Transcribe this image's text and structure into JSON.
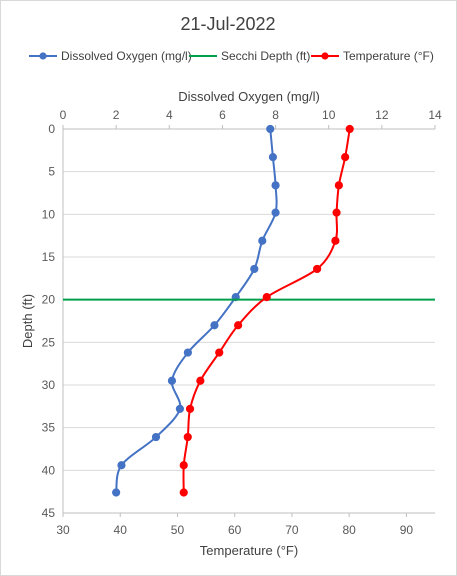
{
  "chart_data": {
    "type": "line",
    "title": "21-Jul-2022",
    "y_axis": {
      "label": "Depth (ft)",
      "range": [
        0,
        45
      ],
      "inverted": true,
      "ticks": [
        "0",
        "5",
        "10",
        "15",
        "20",
        "25",
        "30",
        "35",
        "40",
        "45"
      ]
    },
    "x_axis_top": {
      "label": "Dissolved Oxygen (mg/l)",
      "range": [
        0,
        14
      ],
      "ticks": [
        "0",
        "2",
        "4",
        "6",
        "8",
        "10",
        "12",
        "14"
      ]
    },
    "x_axis_bottom": {
      "label": "Temperature (°F)",
      "range": [
        30,
        95
      ],
      "ticks": [
        "30",
        "40",
        "50",
        "60",
        "70",
        "80",
        "90"
      ]
    },
    "legend": {
      "position": "top"
    },
    "series": [
      {
        "name": "Dissolved Oxygen (mg/l)",
        "axis": "top",
        "color": "#4472c4",
        "points": [
          [
            7.8,
            0
          ],
          [
            7.9,
            3.3
          ],
          [
            8.0,
            6.6
          ],
          [
            8.0,
            9.8
          ],
          [
            7.5,
            13.1
          ],
          [
            7.2,
            16.4
          ],
          [
            6.5,
            19.7
          ],
          [
            5.7,
            23
          ],
          [
            4.7,
            26.2
          ],
          [
            4.1,
            29.5
          ],
          [
            4.4,
            32.8
          ],
          [
            3.5,
            36.1
          ],
          [
            2.2,
            39.4
          ],
          [
            2.0,
            42.6
          ]
        ]
      },
      {
        "name": "Secchi Depth (ft)",
        "axis": "bottom",
        "color": "#00a04a",
        "points": [
          [
            30,
            20
          ],
          [
            95,
            20
          ]
        ]
      },
      {
        "name": "Temperature (°F)",
        "axis": "bottom",
        "color": "#ff0000",
        "points": [
          [
            80.1,
            0
          ],
          [
            79.3,
            3.3
          ],
          [
            78.2,
            6.6
          ],
          [
            77.8,
            9.8
          ],
          [
            77.6,
            13.1
          ],
          [
            74.4,
            16.4
          ],
          [
            65.6,
            19.7
          ],
          [
            60.6,
            23
          ],
          [
            57.3,
            26.2
          ],
          [
            54.0,
            29.5
          ],
          [
            52.2,
            32.8
          ],
          [
            51.8,
            36.1
          ],
          [
            51.1,
            39.4
          ],
          [
            51.1,
            42.6
          ]
        ]
      }
    ],
    "gridlines": true
  }
}
